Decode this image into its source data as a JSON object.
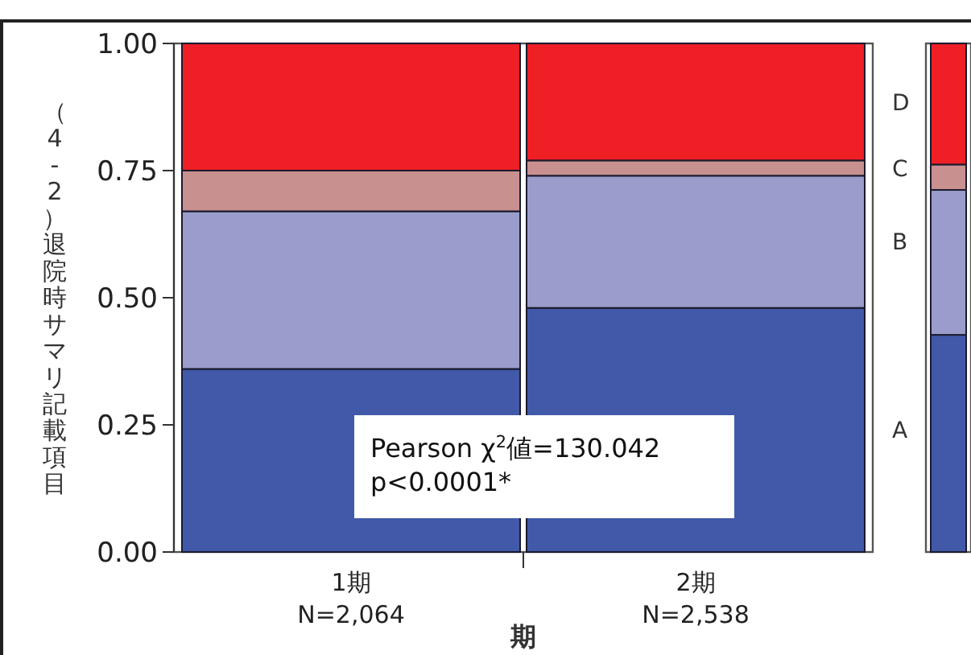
{
  "chart_data": {
    "type": "bar",
    "stacked": true,
    "categories": [
      "1期\nN=2,064",
      "2期\nN=2,538",
      null
    ],
    "series": [
      {
        "name": "A",
        "color": "#4159a8",
        "values": [
          0.36,
          0.48,
          0.427
        ]
      },
      {
        "name": "B",
        "color": "#9a9ccb",
        "values": [
          0.31,
          0.26,
          0.285
        ]
      },
      {
        "name": "C",
        "color": "#c99090",
        "values": [
          0.08,
          0.03,
          0.05
        ]
      },
      {
        "name": "D",
        "color": "#ee1f25",
        "values": [
          0.25,
          0.23,
          0.238
        ]
      }
    ],
    "xlabel": "期",
    "ylabel": "（4-2）退院時サマリ記載項目",
    "ylim": [
      0,
      1
    ],
    "yticks": [
      {
        "value": 0,
        "label": "0.00"
      },
      {
        "value": 0.25,
        "label": "0.25"
      },
      {
        "value": 0.5,
        "label": "0.50"
      },
      {
        "value": 0.75,
        "label": "0.75"
      },
      {
        "value": 1,
        "label": "1.00"
      }
    ],
    "annotations": [
      "Pearson χ$^{2}$値=130.042\np<0.0001*"
    ],
    "grid": false,
    "legend": false
  }
}
